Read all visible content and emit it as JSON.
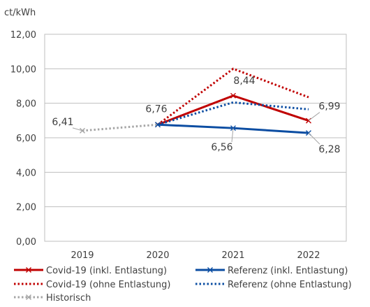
{
  "chart_data": {
    "type": "line",
    "ylabel": "ct/kWh",
    "ylim": [
      0,
      12
    ],
    "yticks": [
      "0,00",
      "2,00",
      "4,00",
      "6,00",
      "8,00",
      "10,00",
      "12,00"
    ],
    "categories": [
      "2019",
      "2020",
      "2021",
      "2022"
    ],
    "grid": true,
    "legend_position": "bottom",
    "series": [
      {
        "name": "Covid-19 (inkl. Entlastung)",
        "values": [
          null,
          6.76,
          8.44,
          6.99
        ],
        "color": "#C00000",
        "style": "solid",
        "marker": "x"
      },
      {
        "name": "Covid-19 (ohne Entlastung)",
        "values": [
          null,
          6.76,
          10.0,
          8.35
        ],
        "color": "#C00000",
        "style": "dotted",
        "marker": "none"
      },
      {
        "name": "Historisch",
        "values": [
          6.41,
          6.76,
          null,
          null
        ],
        "color": "#A6A6A6",
        "style": "dotted",
        "marker": "x"
      },
      {
        "name": "Referenz (inkl. Entlastung)",
        "values": [
          null,
          6.76,
          6.56,
          6.28
        ],
        "color": "#0B4DA2",
        "style": "solid",
        "marker": "x"
      },
      {
        "name": "Referenz (ohne Entlastung)",
        "values": [
          null,
          6.76,
          8.05,
          7.65
        ],
        "color": "#0B4DA2",
        "style": "dotted",
        "marker": "none"
      }
    ],
    "data_labels": [
      {
        "text": "6,41",
        "series": "Historisch",
        "index": 0
      },
      {
        "text": "6,76",
        "series": "Historisch",
        "index": 1
      },
      {
        "text": "8,44",
        "series": "Covid-19 (inkl. Entlastung)",
        "index": 2
      },
      {
        "text": "6,56",
        "series": "Referenz (inkl. Entlastung)",
        "index": 2
      },
      {
        "text": "6,99",
        "series": "Covid-19 (inkl. Entlastung)",
        "index": 3
      },
      {
        "text": "6,28",
        "series": "Referenz (inkl. Entlastung)",
        "index": 3
      }
    ],
    "legend": [
      "Covid-19 (inkl. Entlastung)",
      "Referenz (inkl. Entlastung)",
      "Covid-19 (ohne Entlastung)",
      "Referenz (ohne Entlastung)",
      "Historisch"
    ]
  }
}
